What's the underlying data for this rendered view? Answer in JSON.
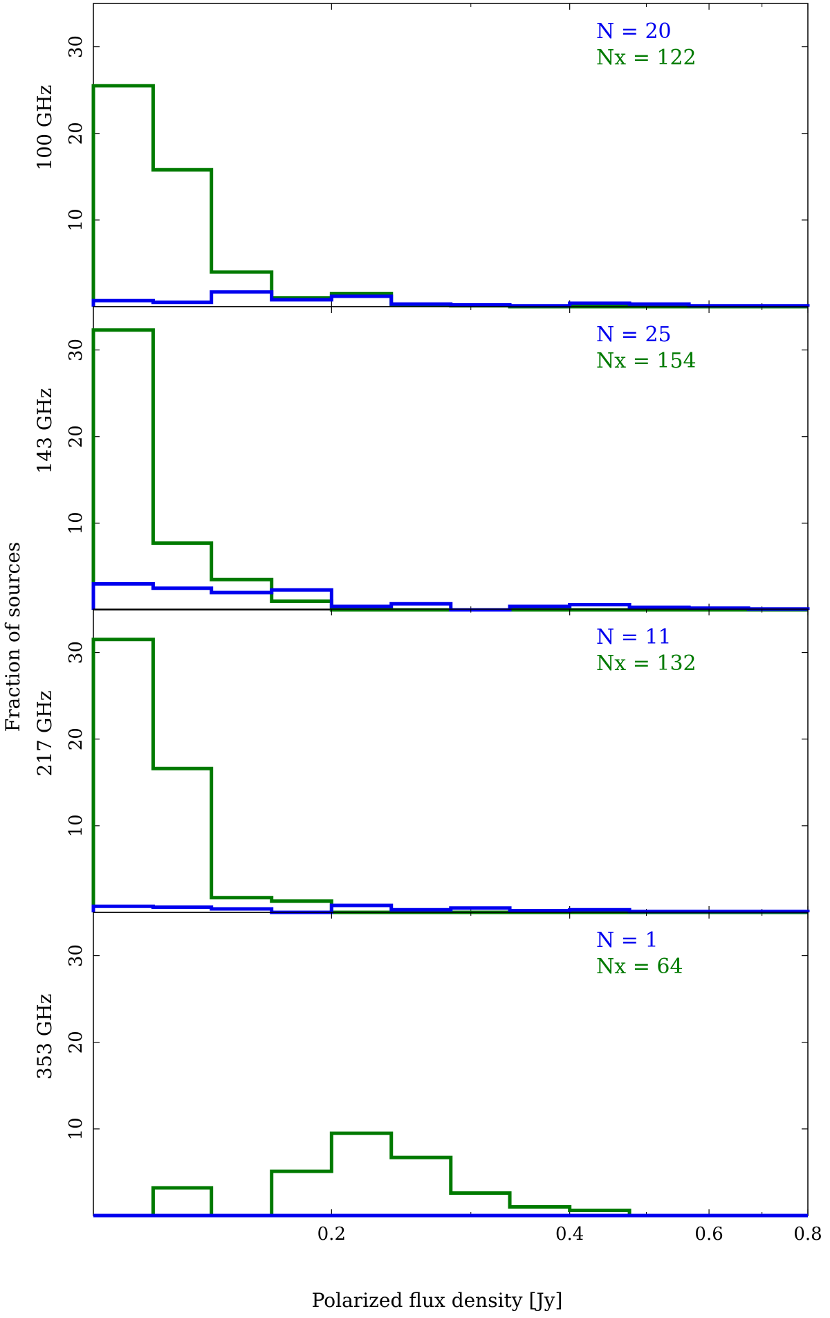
{
  "figure": {
    "ylabel": "Fraction of sources",
    "xlabel": "Polarized flux density [Jy]"
  },
  "colors": {
    "blue": "#0000ee",
    "green": "#007a00",
    "axis": "#000000"
  },
  "chart_data": {
    "type": "histogram",
    "xscale": "log",
    "xlim": [
      0.1,
      0.8
    ],
    "ylim": [
      0,
      35
    ],
    "xticks": [
      {
        "value": 0.2,
        "label": "0.2"
      },
      {
        "value": 0.4,
        "label": "0.4"
      },
      {
        "value": 0.6,
        "label": "0.6"
      },
      {
        "value": 0.8,
        "label": "0.8"
      }
    ],
    "yticks": [
      {
        "value": 10,
        "label": "10"
      },
      {
        "value": 20,
        "label": "20"
      },
      {
        "value": 30,
        "label": "30"
      }
    ],
    "bin_edges": [
      0.1,
      0.119,
      0.141,
      0.168,
      0.2,
      0.238,
      0.283,
      0.336,
      0.4,
      0.476,
      0.566,
      0.673,
      0.8
    ],
    "panels": [
      {
        "label": "100 GHz",
        "n_text": "N = 20",
        "nx_text": "Nx = 122",
        "series": [
          {
            "name": "N",
            "color": "blue",
            "values": [
              0.7,
              0.5,
              1.7,
              0.8,
              1.2,
              0.3,
              0.2,
              0.1,
              0.4,
              0.3,
              0.1,
              0.1
            ]
          },
          {
            "name": "Nx",
            "color": "green",
            "values": [
              25.5,
              15.8,
              4.0,
              1.0,
              1.5,
              0.2,
              0.1,
              0.0,
              0.0,
              0.0,
              0.0,
              0.0
            ]
          }
        ]
      },
      {
        "label": "143 GHz",
        "n_text": "N = 25",
        "nx_text": "Nx = 154",
        "series": [
          {
            "name": "N",
            "color": "blue",
            "values": [
              3.0,
              2.5,
              2.0,
              2.3,
              0.4,
              0.7,
              0.0,
              0.4,
              0.6,
              0.3,
              0.2,
              0.1
            ]
          },
          {
            "name": "Nx",
            "color": "green",
            "values": [
              32.3,
              7.7,
              3.5,
              1.0,
              0.0,
              0.0,
              0.0,
              0.0,
              0.0,
              0.0,
              0.0,
              0.0
            ]
          }
        ]
      },
      {
        "label": "217 GHz",
        "n_text": "N = 11",
        "nx_text": "Nx = 132",
        "series": [
          {
            "name": "N",
            "color": "blue",
            "values": [
              0.7,
              0.6,
              0.4,
              0.0,
              0.8,
              0.3,
              0.5,
              0.2,
              0.3,
              0.1,
              0.1,
              0.1
            ]
          },
          {
            "name": "Nx",
            "color": "green",
            "values": [
              31.5,
              16.6,
              1.7,
              1.3,
              0.0,
              0.0,
              0.0,
              0.0,
              0.0,
              0.0,
              0.0,
              0.0
            ]
          }
        ]
      },
      {
        "label": "353 GHz",
        "n_text": "N = 1",
        "nx_text": "Nx = 64",
        "series": [
          {
            "name": "N",
            "color": "blue",
            "values": [
              0,
              0,
              0,
              0,
              0,
              0,
              0,
              0,
              0,
              0,
              0,
              0
            ]
          },
          {
            "name": "Nx",
            "color": "green",
            "values": [
              0.0,
              3.2,
              0.0,
              5.1,
              9.5,
              6.7,
              2.6,
              1.0,
              0.6,
              0.0,
              0.0,
              0.0
            ]
          }
        ]
      }
    ]
  }
}
